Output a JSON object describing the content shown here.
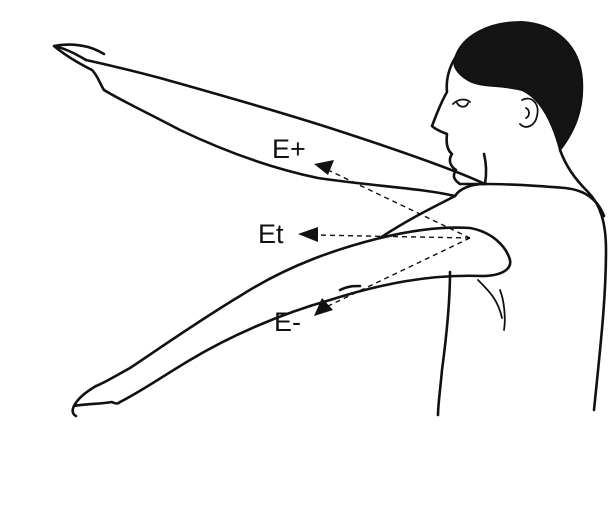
{
  "labels": {
    "e_plus": "E+",
    "e_t": "Et",
    "e_minus": "E-"
  },
  "colors": {
    "ink": "#111111",
    "background": "#ffffff"
  }
}
